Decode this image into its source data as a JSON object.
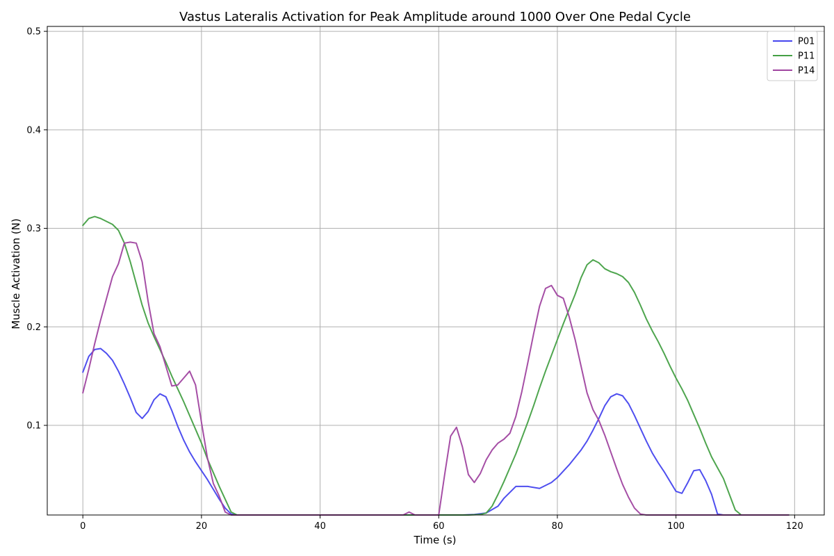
{
  "chart_data": {
    "type": "line",
    "title": "Vastus Lateralis Activation for Peak Amplitude around 1000 Over One Pedal Cycle",
    "xlabel": "Time (s)",
    "ylabel": "Muscle Activation (N)",
    "xlim": [
      -6,
      125
    ],
    "ylim": [
      0.009,
      0.505
    ],
    "x_ticks": [
      0,
      20,
      40,
      60,
      80,
      100,
      120
    ],
    "x_tick_labels": [
      "0",
      "20",
      "40",
      "60",
      "80",
      "100",
      "120"
    ],
    "y_ticks": [
      0.1,
      0.2,
      0.3,
      0.4,
      0.5
    ],
    "y_tick_labels": [
      "0.1",
      "0.2",
      "0.3",
      "0.4",
      "0.5"
    ],
    "grid": true,
    "legend_position": "top-right",
    "series": [
      {
        "name": "P01",
        "color": "#4444ee",
        "points": [
          [
            0,
            0.154
          ],
          [
            1,
            0.17
          ],
          [
            2,
            0.177
          ],
          [
            3,
            0.178
          ],
          [
            4,
            0.173
          ],
          [
            5,
            0.166
          ],
          [
            6,
            0.155
          ],
          [
            7,
            0.142
          ],
          [
            8,
            0.128
          ],
          [
            9,
            0.113
          ],
          [
            10,
            0.107
          ],
          [
            11,
            0.114
          ],
          [
            12,
            0.126
          ],
          [
            13,
            0.132
          ],
          [
            14,
            0.129
          ],
          [
            15,
            0.115
          ],
          [
            16,
            0.099
          ],
          [
            17,
            0.085
          ],
          [
            18,
            0.073
          ],
          [
            19,
            0.063
          ],
          [
            20,
            0.054
          ],
          [
            21,
            0.045
          ],
          [
            22,
            0.035
          ],
          [
            23,
            0.025
          ],
          [
            24,
            0.016
          ],
          [
            25,
            0.01
          ],
          [
            26,
            0.009
          ],
          [
            30,
            0.009
          ],
          [
            40,
            0.009
          ],
          [
            50,
            0.009
          ],
          [
            60,
            0.009
          ],
          [
            64,
            0.009
          ],
          [
            66,
            0.0095
          ],
          [
            68,
            0.011
          ],
          [
            70,
            0.018
          ],
          [
            71,
            0.026
          ],
          [
            72,
            0.032
          ],
          [
            73,
            0.038
          ],
          [
            75,
            0.038
          ],
          [
            77,
            0.036
          ],
          [
            79,
            0.042
          ],
          [
            80,
            0.047
          ],
          [
            82,
            0.06
          ],
          [
            84,
            0.075
          ],
          [
            85,
            0.084
          ],
          [
            86,
            0.095
          ],
          [
            87,
            0.107
          ],
          [
            88,
            0.12
          ],
          [
            89,
            0.129
          ],
          [
            90,
            0.132
          ],
          [
            91,
            0.13
          ],
          [
            92,
            0.122
          ],
          [
            93,
            0.11
          ],
          [
            94,
            0.097
          ],
          [
            95,
            0.084
          ],
          [
            96,
            0.072
          ],
          [
            97,
            0.062
          ],
          [
            98,
            0.053
          ],
          [
            99,
            0.043
          ],
          [
            100,
            0.033
          ],
          [
            101,
            0.031
          ],
          [
            102,
            0.042
          ],
          [
            103,
            0.054
          ],
          [
            104,
            0.055
          ],
          [
            105,
            0.044
          ],
          [
            106,
            0.03
          ],
          [
            107,
            0.01
          ],
          [
            108,
            0.009
          ],
          [
            110,
            0.009
          ],
          [
            119,
            0.009
          ]
        ]
      },
      {
        "name": "P11",
        "color": "#44a044",
        "points": [
          [
            0,
            0.303
          ],
          [
            1,
            0.31
          ],
          [
            2,
            0.312
          ],
          [
            3,
            0.31
          ],
          [
            4,
            0.307
          ],
          [
            5,
            0.304
          ],
          [
            6,
            0.298
          ],
          [
            7,
            0.285
          ],
          [
            8,
            0.266
          ],
          [
            9,
            0.244
          ],
          [
            10,
            0.222
          ],
          [
            11,
            0.204
          ],
          [
            12,
            0.19
          ],
          [
            13,
            0.177
          ],
          [
            14,
            0.164
          ],
          [
            15,
            0.15
          ],
          [
            16,
            0.137
          ],
          [
            17,
            0.124
          ],
          [
            18,
            0.11
          ],
          [
            19,
            0.096
          ],
          [
            20,
            0.082
          ],
          [
            21,
            0.066
          ],
          [
            22,
            0.052
          ],
          [
            23,
            0.038
          ],
          [
            24,
            0.025
          ],
          [
            25,
            0.012
          ],
          [
            26,
            0.009
          ],
          [
            30,
            0.009
          ],
          [
            40,
            0.009
          ],
          [
            50,
            0.009
          ],
          [
            60,
            0.009
          ],
          [
            65,
            0.009
          ],
          [
            67,
            0.0095
          ],
          [
            68,
            0.011
          ],
          [
            69,
            0.018
          ],
          [
            70,
            0.03
          ],
          [
            71,
            0.043
          ],
          [
            72,
            0.057
          ],
          [
            73,
            0.071
          ],
          [
            74,
            0.087
          ],
          [
            75,
            0.103
          ],
          [
            76,
            0.12
          ],
          [
            77,
            0.138
          ],
          [
            78,
            0.155
          ],
          [
            79,
            0.171
          ],
          [
            80,
            0.187
          ],
          [
            81,
            0.203
          ],
          [
            82,
            0.218
          ],
          [
            83,
            0.233
          ],
          [
            84,
            0.25
          ],
          [
            85,
            0.263
          ],
          [
            86,
            0.268
          ],
          [
            87,
            0.265
          ],
          [
            88,
            0.259
          ],
          [
            89,
            0.256
          ],
          [
            90,
            0.254
          ],
          [
            91,
            0.251
          ],
          [
            92,
            0.245
          ],
          [
            93,
            0.235
          ],
          [
            94,
            0.222
          ],
          [
            95,
            0.208
          ],
          [
            96,
            0.196
          ],
          [
            97,
            0.185
          ],
          [
            98,
            0.173
          ],
          [
            99,
            0.16
          ],
          [
            100,
            0.148
          ],
          [
            101,
            0.137
          ],
          [
            102,
            0.125
          ],
          [
            103,
            0.111
          ],
          [
            104,
            0.097
          ],
          [
            105,
            0.082
          ],
          [
            106,
            0.068
          ],
          [
            107,
            0.057
          ],
          [
            108,
            0.046
          ],
          [
            109,
            0.03
          ],
          [
            110,
            0.014
          ],
          [
            111,
            0.009
          ],
          [
            112,
            0.009
          ],
          [
            119,
            0.009
          ]
        ]
      },
      {
        "name": "P14",
        "color": "#a044a0",
        "points": [
          [
            0,
            0.133
          ],
          [
            1,
            0.157
          ],
          [
            2,
            0.183
          ],
          [
            3,
            0.207
          ],
          [
            4,
            0.229
          ],
          [
            5,
            0.251
          ],
          [
            6,
            0.264
          ],
          [
            7,
            0.285
          ],
          [
            8,
            0.286
          ],
          [
            9,
            0.285
          ],
          [
            10,
            0.266
          ],
          [
            11,
            0.226
          ],
          [
            12,
            0.193
          ],
          [
            13,
            0.18
          ],
          [
            14,
            0.16
          ],
          [
            15,
            0.14
          ],
          [
            16,
            0.141
          ],
          [
            17,
            0.148
          ],
          [
            18,
            0.155
          ],
          [
            19,
            0.141
          ],
          [
            20,
            0.103
          ],
          [
            21,
            0.067
          ],
          [
            22,
            0.041
          ],
          [
            23,
            0.028
          ],
          [
            24,
            0.012
          ],
          [
            25,
            0.009
          ],
          [
            30,
            0.009
          ],
          [
            40,
            0.009
          ],
          [
            50,
            0.009
          ],
          [
            54,
            0.009
          ],
          [
            55,
            0.012
          ],
          [
            56,
            0.009
          ],
          [
            60,
            0.009
          ],
          [
            61,
            0.05
          ],
          [
            62,
            0.089
          ],
          [
            63,
            0.098
          ],
          [
            64,
            0.078
          ],
          [
            65,
            0.05
          ],
          [
            66,
            0.042
          ],
          [
            67,
            0.051
          ],
          [
            68,
            0.065
          ],
          [
            69,
            0.075
          ],
          [
            70,
            0.082
          ],
          [
            71,
            0.086
          ],
          [
            72,
            0.092
          ],
          [
            73,
            0.109
          ],
          [
            74,
            0.134
          ],
          [
            75,
            0.163
          ],
          [
            76,
            0.193
          ],
          [
            77,
            0.221
          ],
          [
            78,
            0.239
          ],
          [
            79,
            0.242
          ],
          [
            80,
            0.232
          ],
          [
            81,
            0.229
          ],
          [
            82,
            0.21
          ],
          [
            83,
            0.187
          ],
          [
            84,
            0.16
          ],
          [
            85,
            0.133
          ],
          [
            86,
            0.116
          ],
          [
            87,
            0.105
          ],
          [
            88,
            0.09
          ],
          [
            89,
            0.073
          ],
          [
            90,
            0.056
          ],
          [
            91,
            0.04
          ],
          [
            92,
            0.027
          ],
          [
            93,
            0.016
          ],
          [
            94,
            0.01
          ],
          [
            95,
            0.009
          ],
          [
            100,
            0.009
          ],
          [
            110,
            0.009
          ],
          [
            119,
            0.009
          ]
        ]
      }
    ]
  }
}
